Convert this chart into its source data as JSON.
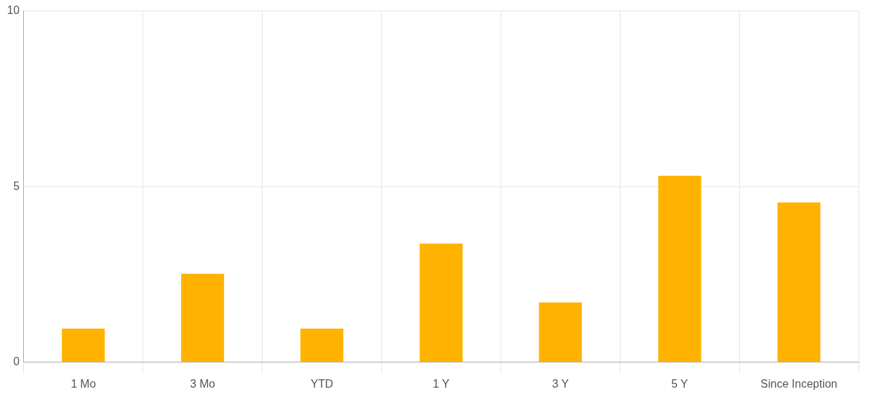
{
  "chart_data": {
    "type": "bar",
    "categories": [
      "1 Mo",
      "3 Mo",
      "YTD",
      "1 Y",
      "3 Y",
      "5 Y",
      "Since Inception"
    ],
    "values": [
      0.96,
      2.52,
      0.96,
      3.38,
      1.7,
      5.31,
      4.55
    ],
    "color": "#ffb300",
    "ylim": [
      0,
      10
    ],
    "yticks": [
      0,
      5,
      10
    ],
    "grid": true,
    "legend": false
  }
}
